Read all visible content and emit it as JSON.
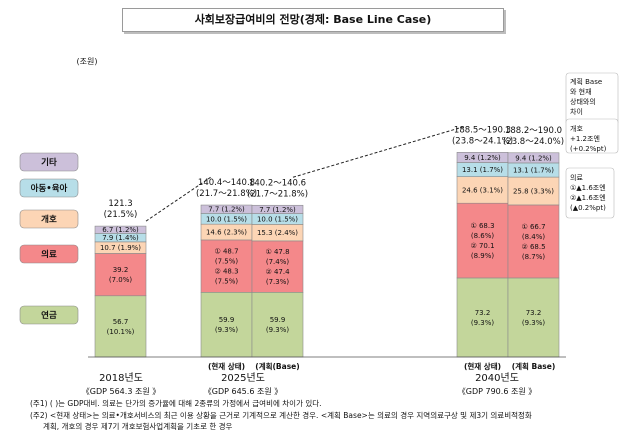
{
  "title": "사회보장급여비의 전망(경제: Base Line Case)",
  "chart_data": {
    "type": "bar",
    "stacked": true,
    "unit_label": "(조원)",
    "category_order": [
      "연금",
      "의료",
      "개호",
      "아동•육아",
      "기타"
    ],
    "category_colors": {
      "연금": "#c3d69b",
      "의료": "#f4888a",
      "개호": "#fcd5b5",
      "아동•육아": "#b7dee8",
      "기타": "#ccc0da"
    },
    "groups": [
      {
        "year_label": "2018년도",
        "gdp_label": "《GDP 564.3 조원 》",
        "bars": [
          {
            "label": "",
            "total_label": [
              "121.3",
              "(21.5%)"
            ],
            "segments": [
              {
                "category": "연금",
                "value": 56.7,
                "lines": [
                  "56.7",
                  "(10.1%)"
                ]
              },
              {
                "category": "의료",
                "value": 39.2,
                "lines": [
                  "39.2",
                  "(7.0%)"
                ]
              },
              {
                "category": "개호",
                "value": 10.7,
                "lines": [
                  "10.7 (1.9%)"
                ]
              },
              {
                "category": "아동•육아",
                "value": 7.9,
                "lines": [
                  "7.9 (1.4%)"
                ]
              },
              {
                "category": "기타",
                "value": 6.7,
                "lines": [
                  "6.7 (1.2%)"
                ]
              }
            ]
          }
        ]
      },
      {
        "year_label": "2025년도",
        "gdp_label": "《GDP 645.6 조원 》",
        "bars": [
          {
            "label": "(현재 상태)",
            "total_label": [
              "140.4～140.8",
              "(21.7～21.8%)"
            ],
            "segments": [
              {
                "category": "연금",
                "value": 59.9,
                "lines": [
                  "59.9",
                  "(9.3%)"
                ]
              },
              {
                "category": "의료",
                "value": 48.5,
                "lines": [
                  "① 48.7",
                  "(7.5%)",
                  "② 48.3",
                  "(7.5%)"
                ]
              },
              {
                "category": "개호",
                "value": 14.6,
                "lines": [
                  "14.6 (2.3%)"
                ]
              },
              {
                "category": "아동•육아",
                "value": 10.0,
                "lines": [
                  "10.0 (1.5%)"
                ]
              },
              {
                "category": "기타",
                "value": 7.7,
                "lines": [
                  "7.7 (1.2%)"
                ]
              }
            ]
          },
          {
            "label": "(계획(Base)",
            "total_label": [
              "140.2～140.6",
              "(21.7～21.8%)"
            ],
            "segments": [
              {
                "category": "연금",
                "value": 59.9,
                "lines": [
                  "59.9",
                  "(9.3%)"
                ]
              },
              {
                "category": "의료",
                "value": 47.6,
                "lines": [
                  "① 47.8",
                  "(7.4%)",
                  "② 47.4",
                  "(7.3%)"
                ]
              },
              {
                "category": "개호",
                "value": 15.3,
                "lines": [
                  "15.3 (2.4%)"
                ]
              },
              {
                "category": "아동•육아",
                "value": 10.0,
                "lines": [
                  "10.0 (1.5%)"
                ]
              },
              {
                "category": "기타",
                "value": 7.7,
                "lines": [
                  "7.7 (1.2%)"
                ]
              }
            ]
          }
        ]
      },
      {
        "year_label": "2040년도",
        "gdp_label": "《GDP 790.6 조원 》",
        "bars": [
          {
            "label": "(현재 상태)",
            "total_label": [
              "188.5～190.3",
              "(23.8～24.1%)"
            ],
            "segments": [
              {
                "category": "연금",
                "value": 73.2,
                "lines": [
                  "73.2",
                  "(9.3%)"
                ]
              },
              {
                "category": "의료",
                "value": 69.2,
                "lines": [
                  "① 68.3",
                  "(8.6%)",
                  "② 70.1",
                  "(8.9%)"
                ]
              },
              {
                "category": "개호",
                "value": 24.6,
                "lines": [
                  "24.6 (3.1%)"
                ]
              },
              {
                "category": "아동•육아",
                "value": 13.1,
                "lines": [
                  "13.1 (1.7%)"
                ]
              },
              {
                "category": "기타",
                "value": 9.4,
                "lines": [
                  "9.4 (1.2%)"
                ]
              }
            ]
          },
          {
            "label": "(계획 Base)",
            "total_label": [
              "188.2～190.0",
              "(23.8～24.0%)"
            ],
            "segments": [
              {
                "category": "연금",
                "value": 73.2,
                "lines": [
                  "73.2",
                  "(9.3%)"
                ]
              },
              {
                "category": "의료",
                "value": 67.6,
                "lines": [
                  "① 66.7",
                  "(8.4%)",
                  "② 68.5",
                  "(8.7%)"
                ]
              },
              {
                "category": "개호",
                "value": 25.8,
                "lines": [
                  "25.8 (3.3%)"
                ]
              },
              {
                "category": "아동•육아",
                "value": 13.1,
                "lines": [
                  "13.1 (1.7%)"
                ]
              },
              {
                "category": "기타",
                "value": 9.4,
                "lines": [
                  "9.4 (1.2%)"
                ]
              }
            ]
          }
        ]
      }
    ],
    "annotations": [
      {
        "anchor": "기타",
        "lines": [
          "계획 Base",
          "와 현재",
          "상태와의",
          "차이"
        ]
      },
      {
        "anchor": "개호",
        "lines": [
          "개호",
          "+1.2조엔",
          "(+0.2%pt)"
        ]
      },
      {
        "anchor": "의료",
        "lines": [
          "의료",
          "①▲1.6조엔",
          "②▲1.6조엔",
          "(▲0.2%pt)"
        ]
      }
    ]
  },
  "notes": [
    "(주1) ( )는 GDP대비. 의료는 단가의 증가율에 대해 2종류의 가정에서 급여비에 차이가 있다.",
    "(주2) <현재 상태>는 의료•개호서비스의 최근 이용 상황을 근거로 기계적으로 계산한 경우. <계획 Base>는 의료의 경우 지역의료구상 및 제3기 의료비적정화",
    "계획, 개호의 경우 제7기 개호보험사업계획을 기초로 한 경우"
  ]
}
